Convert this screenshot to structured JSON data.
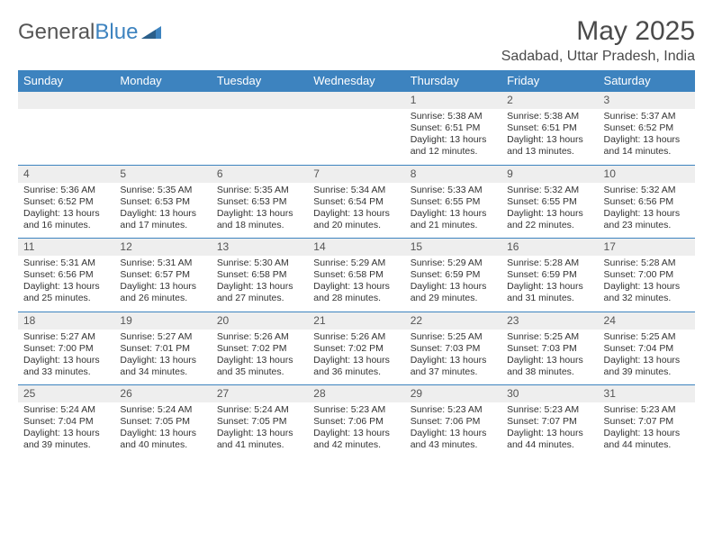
{
  "logo": {
    "text1": "General",
    "text2": "Blue"
  },
  "title": "May 2025",
  "location": "Sadabad, Uttar Pradesh, India",
  "colors": {
    "header_bg": "#3d83bf",
    "daynum_bg": "#eeeeee",
    "text": "#333333"
  },
  "days": [
    "Sunday",
    "Monday",
    "Tuesday",
    "Wednesday",
    "Thursday",
    "Friday",
    "Saturday"
  ],
  "weeks": [
    [
      null,
      null,
      null,
      null,
      {
        "n": "1",
        "sr": "5:38 AM",
        "ss": "6:51 PM",
        "dl": "13 hours and 12 minutes."
      },
      {
        "n": "2",
        "sr": "5:38 AM",
        "ss": "6:51 PM",
        "dl": "13 hours and 13 minutes."
      },
      {
        "n": "3",
        "sr": "5:37 AM",
        "ss": "6:52 PM",
        "dl": "13 hours and 14 minutes."
      }
    ],
    [
      {
        "n": "4",
        "sr": "5:36 AM",
        "ss": "6:52 PM",
        "dl": "13 hours and 16 minutes."
      },
      {
        "n": "5",
        "sr": "5:35 AM",
        "ss": "6:53 PM",
        "dl": "13 hours and 17 minutes."
      },
      {
        "n": "6",
        "sr": "5:35 AM",
        "ss": "6:53 PM",
        "dl": "13 hours and 18 minutes."
      },
      {
        "n": "7",
        "sr": "5:34 AM",
        "ss": "6:54 PM",
        "dl": "13 hours and 20 minutes."
      },
      {
        "n": "8",
        "sr": "5:33 AM",
        "ss": "6:55 PM",
        "dl": "13 hours and 21 minutes."
      },
      {
        "n": "9",
        "sr": "5:32 AM",
        "ss": "6:55 PM",
        "dl": "13 hours and 22 minutes."
      },
      {
        "n": "10",
        "sr": "5:32 AM",
        "ss": "6:56 PM",
        "dl": "13 hours and 23 minutes."
      }
    ],
    [
      {
        "n": "11",
        "sr": "5:31 AM",
        "ss": "6:56 PM",
        "dl": "13 hours and 25 minutes."
      },
      {
        "n": "12",
        "sr": "5:31 AM",
        "ss": "6:57 PM",
        "dl": "13 hours and 26 minutes."
      },
      {
        "n": "13",
        "sr": "5:30 AM",
        "ss": "6:58 PM",
        "dl": "13 hours and 27 minutes."
      },
      {
        "n": "14",
        "sr": "5:29 AM",
        "ss": "6:58 PM",
        "dl": "13 hours and 28 minutes."
      },
      {
        "n": "15",
        "sr": "5:29 AM",
        "ss": "6:59 PM",
        "dl": "13 hours and 29 minutes."
      },
      {
        "n": "16",
        "sr": "5:28 AM",
        "ss": "6:59 PM",
        "dl": "13 hours and 31 minutes."
      },
      {
        "n": "17",
        "sr": "5:28 AM",
        "ss": "7:00 PM",
        "dl": "13 hours and 32 minutes."
      }
    ],
    [
      {
        "n": "18",
        "sr": "5:27 AM",
        "ss": "7:00 PM",
        "dl": "13 hours and 33 minutes."
      },
      {
        "n": "19",
        "sr": "5:27 AM",
        "ss": "7:01 PM",
        "dl": "13 hours and 34 minutes."
      },
      {
        "n": "20",
        "sr": "5:26 AM",
        "ss": "7:02 PM",
        "dl": "13 hours and 35 minutes."
      },
      {
        "n": "21",
        "sr": "5:26 AM",
        "ss": "7:02 PM",
        "dl": "13 hours and 36 minutes."
      },
      {
        "n": "22",
        "sr": "5:25 AM",
        "ss": "7:03 PM",
        "dl": "13 hours and 37 minutes."
      },
      {
        "n": "23",
        "sr": "5:25 AM",
        "ss": "7:03 PM",
        "dl": "13 hours and 38 minutes."
      },
      {
        "n": "24",
        "sr": "5:25 AM",
        "ss": "7:04 PM",
        "dl": "13 hours and 39 minutes."
      }
    ],
    [
      {
        "n": "25",
        "sr": "5:24 AM",
        "ss": "7:04 PM",
        "dl": "13 hours and 39 minutes."
      },
      {
        "n": "26",
        "sr": "5:24 AM",
        "ss": "7:05 PM",
        "dl": "13 hours and 40 minutes."
      },
      {
        "n": "27",
        "sr": "5:24 AM",
        "ss": "7:05 PM",
        "dl": "13 hours and 41 minutes."
      },
      {
        "n": "28",
        "sr": "5:23 AM",
        "ss": "7:06 PM",
        "dl": "13 hours and 42 minutes."
      },
      {
        "n": "29",
        "sr": "5:23 AM",
        "ss": "7:06 PM",
        "dl": "13 hours and 43 minutes."
      },
      {
        "n": "30",
        "sr": "5:23 AM",
        "ss": "7:07 PM",
        "dl": "13 hours and 44 minutes."
      },
      {
        "n": "31",
        "sr": "5:23 AM",
        "ss": "7:07 PM",
        "dl": "13 hours and 44 minutes."
      }
    ]
  ]
}
